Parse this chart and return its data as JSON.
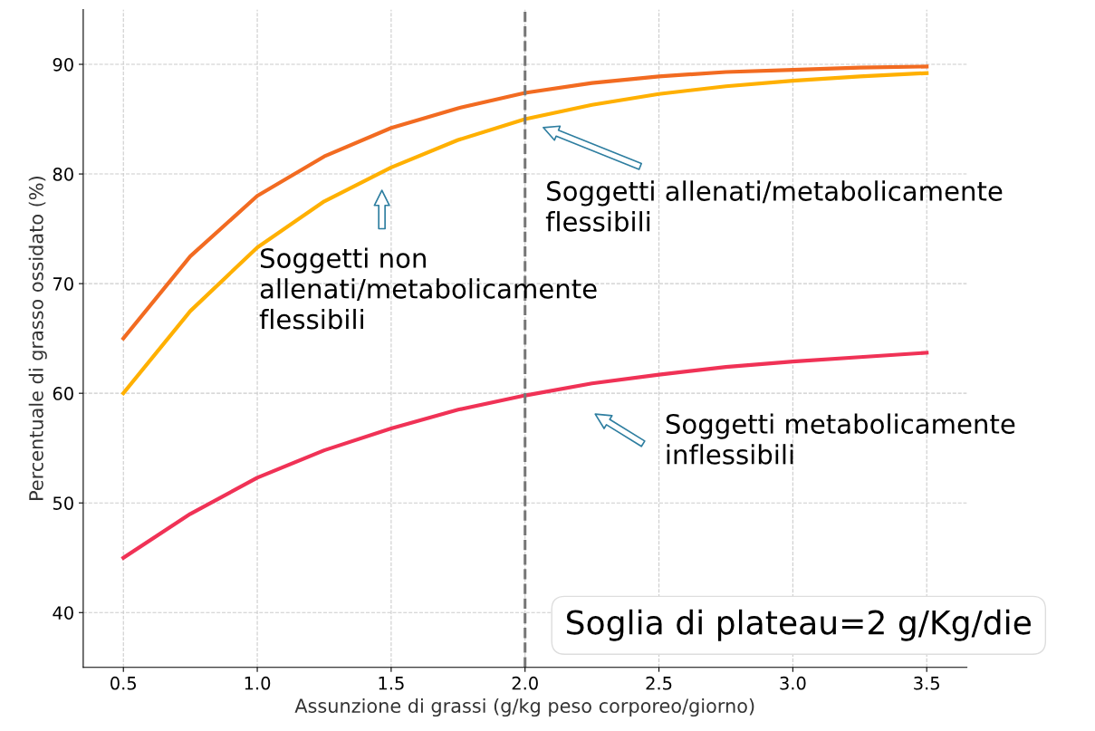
{
  "chart_data": {
    "type": "line",
    "xlabel": "Assunzione di grassi (g/kg peso corporeo/giorno)",
    "ylabel": "Percentuale di grasso ossidato (%)",
    "x": [
      0.5,
      0.75,
      1.0,
      1.25,
      1.5,
      1.75,
      2.0,
      2.25,
      2.5,
      2.75,
      3.0,
      3.25,
      3.5
    ],
    "series": [
      {
        "color": "#ffb000",
        "values": [
          60,
          67.5,
          73.3,
          77.5,
          80.6,
          83.1,
          85.0,
          86.3,
          87.3,
          88.0,
          88.5,
          88.9,
          89.2
        ]
      },
      {
        "color": "#f26b21",
        "values": [
          65,
          72.5,
          78,
          81.6,
          84.2,
          86.0,
          87.4,
          88.3,
          88.9,
          89.3,
          89.5,
          89.7,
          89.8
        ]
      },
      {
        "color": "#f03256",
        "values": [
          45,
          49,
          52.3,
          54.8,
          56.8,
          58.5,
          59.8,
          60.9,
          61.7,
          62.4,
          62.9,
          63.3,
          63.7
        ]
      }
    ],
    "xlim": [
      0.35,
      3.65
    ],
    "ylim": [
      35,
      95
    ],
    "xticks": [
      0.5,
      {
        "value": 1,
        "label": "1.0"
      },
      1.5,
      {
        "value": 2,
        "label": "2.0"
      },
      2.5,
      {
        "value": 3,
        "label": "3.0"
      },
      3.5
    ],
    "yticks": [
      40,
      50,
      60,
      70,
      80,
      90
    ],
    "grid": true,
    "line_style": "solid",
    "marker": "none",
    "ref_lines": [
      {
        "axis": "x",
        "value": 2.0,
        "label": "Soglia di plateau=2 g/Kg/die",
        "color": "#777777",
        "line_style": "dashed"
      }
    ],
    "annotations": [
      "Soggetti allenati/metabolicamente\nflessibili",
      "Soggetti non\nallenati/metabolicamente\nflessibili",
      "Soggetti metabolicamente\ninflessibili"
    ]
  }
}
